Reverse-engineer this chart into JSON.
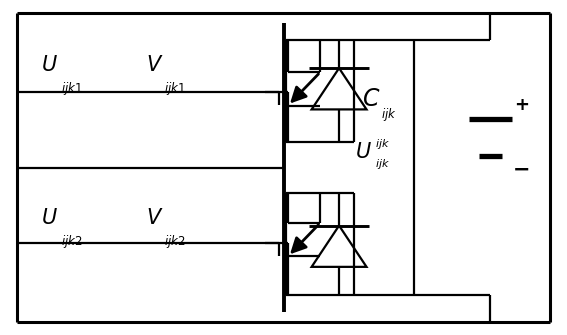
{
  "bg_color": "#ffffff",
  "line_color": "#000000",
  "fig_width": 5.67,
  "fig_height": 3.35,
  "dpi": 100
}
